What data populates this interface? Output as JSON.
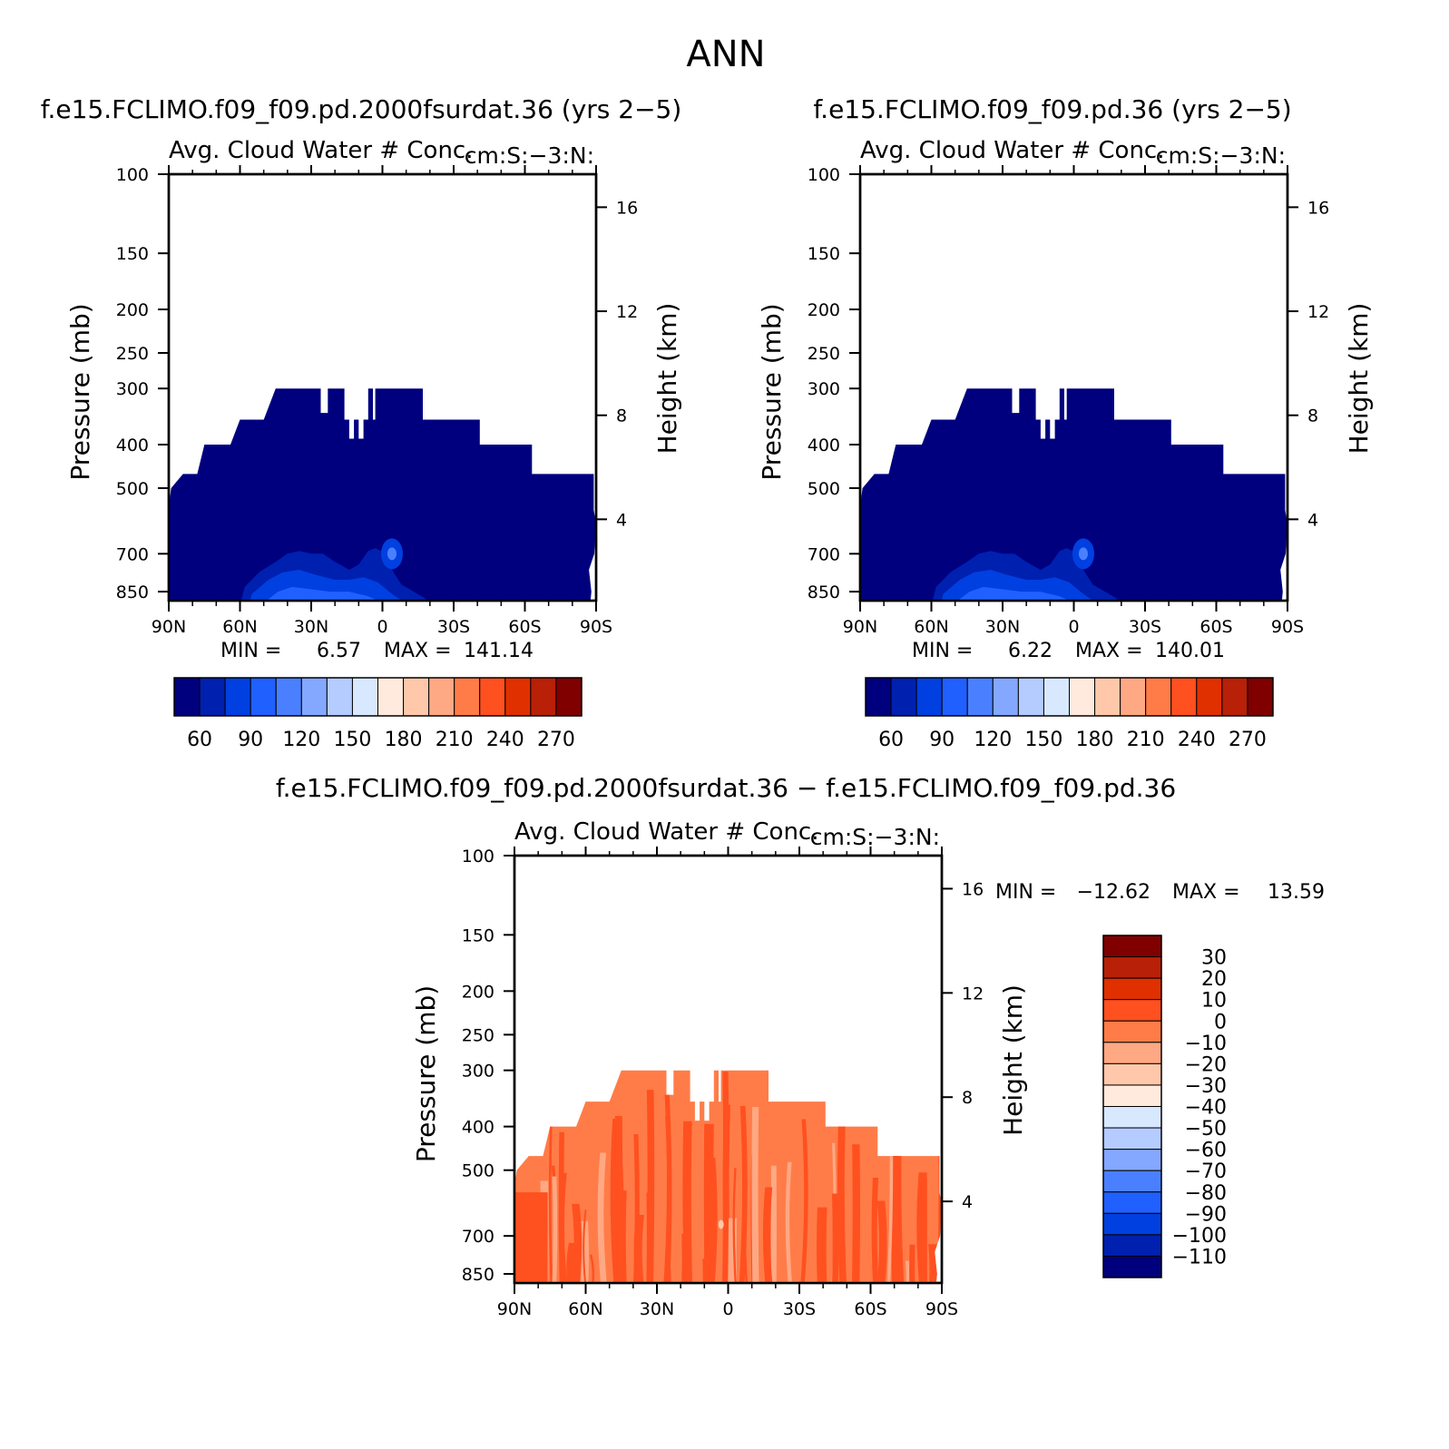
{
  "page_title": "ANN",
  "palette": {
    "full": [
      "#00007f",
      "#0020b0",
      "#0040e0",
      "#2060ff",
      "#4a80ff",
      "#84a8ff",
      "#b4ccff",
      "#d8e8ff",
      "#ffeadd",
      "#ffc8ab",
      "#ffa884",
      "#ff7c48",
      "#ff5020",
      "#e03000",
      "#b82008",
      "#800000"
    ],
    "diff_main": "#ff7c48",
    "diff_dark": "#ff5020",
    "diff_light": "#ffa884",
    "diff_speck": "#ffc8ab"
  },
  "shared_labels": {
    "x_ticks": [
      "90N",
      "60N",
      "30N",
      "0",
      "30S",
      "60S",
      "90S"
    ],
    "y_ticks": [
      "100",
      "150",
      "200",
      "250",
      "300",
      "400",
      "500",
      "700",
      "850"
    ],
    "right_ticks": [
      "16",
      "12",
      "8",
      "4"
    ],
    "ylabel_left": "Pressure (mb)",
    "ylabel_right": "Height (km)",
    "plot_title": "Avg. Cloud Water # Conc.",
    "plot_units": "cm:S:-3:N:"
  },
  "chart_data": [
    {
      "type": "heatmap",
      "case": "f.e15.FCLIMO.f09_f09.pd.2000fsurdat.36 (yrs 2−5)",
      "title": "Avg. Cloud Water # Conc.",
      "units": "cm:S:−3:N:",
      "xlabel": "",
      "ylabel": "Pressure (mb)",
      "ylabel_right": "Height (km)",
      "x_ticks": [
        "90N",
        "60N",
        "30N",
        "0",
        "30S",
        "60S",
        "90S"
      ],
      "y_ticks": [
        100,
        150,
        200,
        250,
        300,
        400,
        500,
        700,
        850
      ],
      "right_ticks": [
        16,
        12,
        8,
        4
      ],
      "ylim": [
        100,
        1000
      ],
      "min": 6.57,
      "max": 141.14,
      "stats_text": {
        "min_label": "MIN =",
        "min_value": "6.57",
        "max_label": "MAX =",
        "max_value": "141.14"
      },
      "colorbar": {
        "orientation": "horizontal",
        "levels": [
          60,
          90,
          120,
          150,
          180,
          210,
          240,
          270
        ],
        "labels": [
          "60",
          "90",
          "120",
          "150",
          "180",
          "210",
          "240",
          "270"
        ]
      },
      "cloud_top_mb": 300,
      "max_region": "near surface, 60N–0"
    },
    {
      "type": "heatmap",
      "case": "f.e15.FCLIMO.f09_f09.pd.36 (yrs 2−5)",
      "title": "Avg. Cloud Water # Conc.",
      "units": "cm:S:−3:N:",
      "xlabel": "",
      "ylabel": "Pressure (mb)",
      "ylabel_right": "Height (km)",
      "x_ticks": [
        "90N",
        "60N",
        "30N",
        "0",
        "30S",
        "60S",
        "90S"
      ],
      "y_ticks": [
        100,
        150,
        200,
        250,
        300,
        400,
        500,
        700,
        850
      ],
      "right_ticks": [
        16,
        12,
        8,
        4
      ],
      "ylim": [
        100,
        1000
      ],
      "min": 6.22,
      "max": 140.01,
      "stats_text": {
        "min_label": "MIN =",
        "min_value": "6.22",
        "max_label": "MAX =",
        "max_value": "140.01"
      },
      "colorbar": {
        "orientation": "horizontal",
        "levels": [
          60,
          90,
          120,
          150,
          180,
          210,
          240,
          270
        ],
        "labels": [
          "60",
          "90",
          "120",
          "150",
          "180",
          "210",
          "240",
          "270"
        ]
      },
      "cloud_top_mb": 300,
      "max_region": "near surface, 60N–0"
    },
    {
      "type": "heatmap",
      "case": "f.e15.FCLIMO.f09_f09.pd.2000fsurdat.36 − f.e15.FCLIMO.f09_f09.pd.36",
      "title": "Avg. Cloud Water # Conc.",
      "units": "cm:S:−3:N:",
      "xlabel": "",
      "ylabel": "Pressure (mb)",
      "ylabel_right": "Height (km)",
      "x_ticks": [
        "90N",
        "60N",
        "30N",
        "0",
        "30S",
        "60S",
        "90S"
      ],
      "y_ticks": [
        100,
        150,
        200,
        250,
        300,
        400,
        500,
        700,
        850
      ],
      "right_ticks": [
        16,
        12,
        8,
        4
      ],
      "ylim": [
        100,
        1000
      ],
      "min": -12.62,
      "max": 13.59,
      "stats_text": {
        "min_label": "MIN =",
        "min_value": "−12.62",
        "max_label": "MAX =",
        "max_value": "13.59"
      },
      "colorbar": {
        "orientation": "vertical",
        "levels": [
          30,
          20,
          10,
          0,
          -10,
          -20,
          -30,
          -40,
          -50,
          -60,
          -70,
          -80,
          -90,
          -100,
          -110
        ],
        "labels": [
          "30",
          "20",
          "10",
          "0",
          "−10",
          "−20",
          "−30",
          "−40",
          "−50",
          "−60",
          "−70",
          "−80",
          "−90",
          "−100",
          "−110"
        ]
      },
      "cloud_top_mb": 300
    }
  ]
}
